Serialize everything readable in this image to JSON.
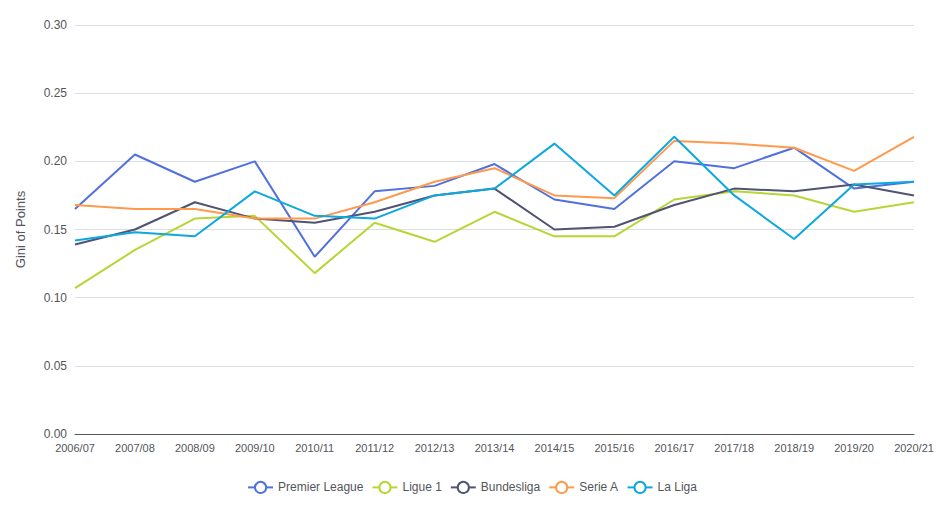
{
  "chart_data": {
    "type": "line",
    "ylabel": "Gini of Points",
    "categories": [
      "2006/07",
      "2007/08",
      "2008/09",
      "2009/10",
      "2010/11",
      "2011/12",
      "2012/13",
      "2013/14",
      "2014/15",
      "2015/16",
      "2016/17",
      "2017/18",
      "2018/19",
      "2019/20",
      "2020/21"
    ],
    "series": [
      {
        "name": "Premier League",
        "values": [
          0.165,
          0.205,
          0.185,
          0.2,
          0.13,
          0.178,
          0.182,
          0.198,
          0.172,
          0.165,
          0.2,
          0.195,
          0.21,
          0.18,
          0.185
        ]
      },
      {
        "name": "Ligue 1",
        "values": [
          0.107,
          0.135,
          0.158,
          0.16,
          0.118,
          0.155,
          0.141,
          0.163,
          0.145,
          0.145,
          0.172,
          0.178,
          0.175,
          0.163,
          0.17
        ]
      },
      {
        "name": "Bundesliga",
        "values": [
          0.139,
          0.15,
          0.17,
          0.158,
          0.155,
          0.163,
          0.175,
          0.18,
          0.15,
          0.152,
          0.168,
          0.18,
          0.178,
          0.183,
          0.175
        ]
      },
      {
        "name": "Serie A",
        "values": [
          0.168,
          0.165,
          0.165,
          0.158,
          0.158,
          0.17,
          0.185,
          0.195,
          0.175,
          0.173,
          0.215,
          0.213,
          0.21,
          0.193,
          0.218
        ]
      },
      {
        "name": "La Liga",
        "values": [
          0.142,
          0.148,
          0.145,
          0.178,
          0.16,
          0.158,
          0.175,
          0.18,
          0.213,
          0.175,
          0.218,
          0.175,
          0.143,
          0.183,
          0.185
        ]
      }
    ],
    "ylim": [
      0.0,
      0.3
    ],
    "yticks": [
      {
        "value": 0,
        "label": "0.00"
      },
      0.05,
      {
        "value": 0.1,
        "label": "0.10"
      },
      0.15,
      {
        "value": 0.2,
        "label": "0.20"
      },
      0.25,
      {
        "value": 0.3,
        "label": "0.30"
      }
    ],
    "grid": true,
    "legend": "bottom"
  }
}
